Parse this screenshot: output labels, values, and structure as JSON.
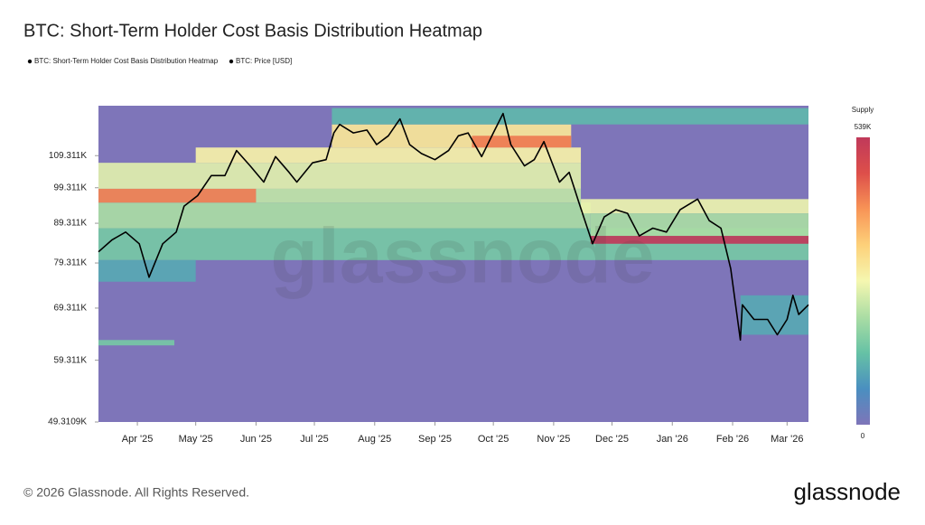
{
  "chart_data": {
    "type": "heatmap",
    "title": "BTC: Short-Term Holder Cost Basis Distribution Heatmap",
    "heatmap": {
      "name": "BTC: Short-Term Holder Cost Basis Distribution Heatmap",
      "colorbar_title": "Supply",
      "zlim": [
        0,
        539000
      ],
      "zticks": [
        {
          "value": 539000,
          "label": "539K"
        },
        0
      ],
      "colorscale": [
        "#7e75b9",
        "#4a8fc0",
        "#66c2a5",
        "#abdda4",
        "#f5f7b0",
        "#fdd17a",
        "#f89456",
        "#dd4f4a",
        "#c0395a"
      ],
      "bands": [
        {
          "start": "2025-03-12",
          "end": "2026-03-12",
          "low": 80000,
          "high": 88000,
          "value": 150000
        },
        {
          "start": "2025-03-12",
          "end": "2025-11-20",
          "low": 88000,
          "high": 95000,
          "value": 200000
        },
        {
          "start": "2025-03-12",
          "end": "2025-11-15",
          "low": 99000,
          "high": 107000,
          "value": 250000
        },
        {
          "start": "2025-03-12",
          "end": "2025-06-01",
          "low": 95000,
          "high": 99000,
          "value": 420000
        },
        {
          "start": "2025-06-01",
          "end": "2025-11-15",
          "low": 95000,
          "high": 99000,
          "value": 220000
        },
        {
          "start": "2025-03-12",
          "end": "2025-05-01",
          "low": 75000,
          "high": 80000,
          "value": 100000
        },
        {
          "start": "2025-03-12",
          "end": "2025-04-20",
          "low": 62000,
          "high": 63000,
          "value": 150000
        },
        {
          "start": "2025-05-01",
          "end": "2025-11-15",
          "low": 107000,
          "high": 112000,
          "value": 280000
        },
        {
          "start": "2025-07-10",
          "end": "2025-11-10",
          "low": 112000,
          "high": 120000,
          "value": 300000
        },
        {
          "start": "2025-09-20",
          "end": "2025-11-10",
          "low": 112000,
          "high": 116000,
          "value": 430000
        },
        {
          "start": "2025-07-10",
          "end": "2026-03-12",
          "low": 120000,
          "high": 126000,
          "value": 120000
        },
        {
          "start": "2025-11-15",
          "end": "2026-03-12",
          "low": 92000,
          "high": 96000,
          "value": 260000
        },
        {
          "start": "2025-11-20",
          "end": "2026-03-12",
          "low": 86000,
          "high": 92000,
          "value": 200000
        },
        {
          "start": "2025-11-20",
          "end": "2026-03-12",
          "low": 84000,
          "high": 86000,
          "value": 539000
        },
        {
          "start": "2026-02-05",
          "end": "2026-03-12",
          "low": 64000,
          "high": 72000,
          "value": 100000
        }
      ]
    },
    "x": [
      "2025-03-12",
      "2025-03-19",
      "2025-03-26",
      "2025-04-02",
      "2025-04-07",
      "2025-04-14",
      "2025-04-21",
      "2025-04-25",
      "2025-05-02",
      "2025-05-09",
      "2025-05-16",
      "2025-05-22",
      "2025-05-29",
      "2025-06-05",
      "2025-06-11",
      "2025-06-18",
      "2025-06-22",
      "2025-06-30",
      "2025-07-07",
      "2025-07-11",
      "2025-07-14",
      "2025-07-21",
      "2025-07-28",
      "2025-08-02",
      "2025-08-08",
      "2025-08-14",
      "2025-08-19",
      "2025-08-25",
      "2025-09-01",
      "2025-09-08",
      "2025-09-13",
      "2025-09-18",
      "2025-09-25",
      "2025-10-01",
      "2025-10-06",
      "2025-10-10",
      "2025-10-17",
      "2025-10-22",
      "2025-10-27",
      "2025-11-04",
      "2025-11-09",
      "2025-11-14",
      "2025-11-21",
      "2025-11-27",
      "2025-12-03",
      "2025-12-09",
      "2025-12-15",
      "2025-12-22",
      "2025-12-29",
      "2026-01-05",
      "2026-01-14",
      "2026-01-20",
      "2026-01-26",
      "2026-01-31",
      "2026-02-05",
      "2026-02-06",
      "2026-02-12",
      "2026-02-19",
      "2026-02-24",
      "2026-03-01",
      "2026-03-04",
      "2026-03-07",
      "2026-03-12"
    ],
    "series": [
      {
        "name": "BTC: Price [USD]",
        "color": "#000000",
        "values": [
          82000,
          85000,
          87000,
          84000,
          76000,
          84000,
          87000,
          94000,
          97000,
          103000,
          103000,
          111000,
          106000,
          101000,
          109000,
          104000,
          101000,
          107000,
          108000,
          117000,
          120000,
          117000,
          118000,
          113000,
          116000,
          122000,
          113000,
          110000,
          108000,
          111000,
          116000,
          117000,
          109000,
          117000,
          124000,
          113000,
          106000,
          108000,
          114000,
          101000,
          104000,
          95000,
          84000,
          91000,
          93000,
          92000,
          86000,
          88000,
          87000,
          93000,
          96000,
          90000,
          88000,
          78000,
          63000,
          70000,
          67000,
          67000,
          64000,
          67000,
          72000,
          68000,
          70000
        ]
      }
    ],
    "xlim": [
      "2025-03-12",
      "2026-03-12"
    ],
    "xticks": [
      {
        "value": "2025-04-01",
        "label": "Apr '25"
      },
      {
        "value": "2025-05-01",
        "label": "May '25"
      },
      {
        "value": "2025-06-01",
        "label": "Jun '25"
      },
      {
        "value": "2025-07-01",
        "label": "Jul '25"
      },
      {
        "value": "2025-08-01",
        "label": "Aug '25"
      },
      {
        "value": "2025-09-01",
        "label": "Sep '25"
      },
      {
        "value": "2025-10-01",
        "label": "Oct '25"
      },
      {
        "value": "2025-11-01",
        "label": "Nov '25"
      },
      {
        "value": "2025-12-01",
        "label": "Dec '25"
      },
      {
        "value": "2026-01-01",
        "label": "Jan '26"
      },
      {
        "value": "2026-02-01",
        "label": "Feb '26"
      },
      {
        "value": "2026-03-01",
        "label": "Mar '26"
      }
    ],
    "ylim": [
      49310.9,
      126900
    ],
    "log_y": true,
    "yticks": [
      {
        "value": 49310.9,
        "label": "49.3109K"
      },
      {
        "value": 59311,
        "label": "59.311K"
      },
      {
        "value": 69311,
        "label": "69.311K"
      },
      {
        "value": 79311,
        "label": "79.311K"
      },
      {
        "value": 89311,
        "label": "89.311K"
      },
      {
        "value": 99311,
        "label": "99.311K"
      },
      {
        "value": 109311,
        "label": "109.311K"
      }
    ]
  },
  "watermark": "glassnode",
  "footer": "© 2026 Glassnode. All Rights Reserved.",
  "logo": "glassnode"
}
